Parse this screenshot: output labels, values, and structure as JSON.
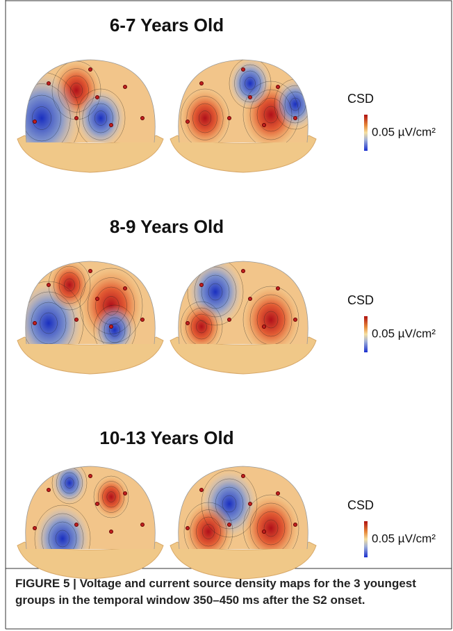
{
  "panels": [
    {
      "title": "6-7 Years Old",
      "legend_title": "CSD",
      "scale_label": "0.05 µV/cm²"
    },
    {
      "title": "8-9 Years Old",
      "legend_title": "CSD",
      "scale_label": "0.05 µV/cm²"
    },
    {
      "title": "10-13 Years Old",
      "legend_title": "CSD",
      "scale_label": "0.05 µV/cm²"
    }
  ],
  "caption": "FIGURE 5 | Voltage and current source density maps for the 3 youngest groups in the temporal window 350–450 ms after the S2 onset."
}
